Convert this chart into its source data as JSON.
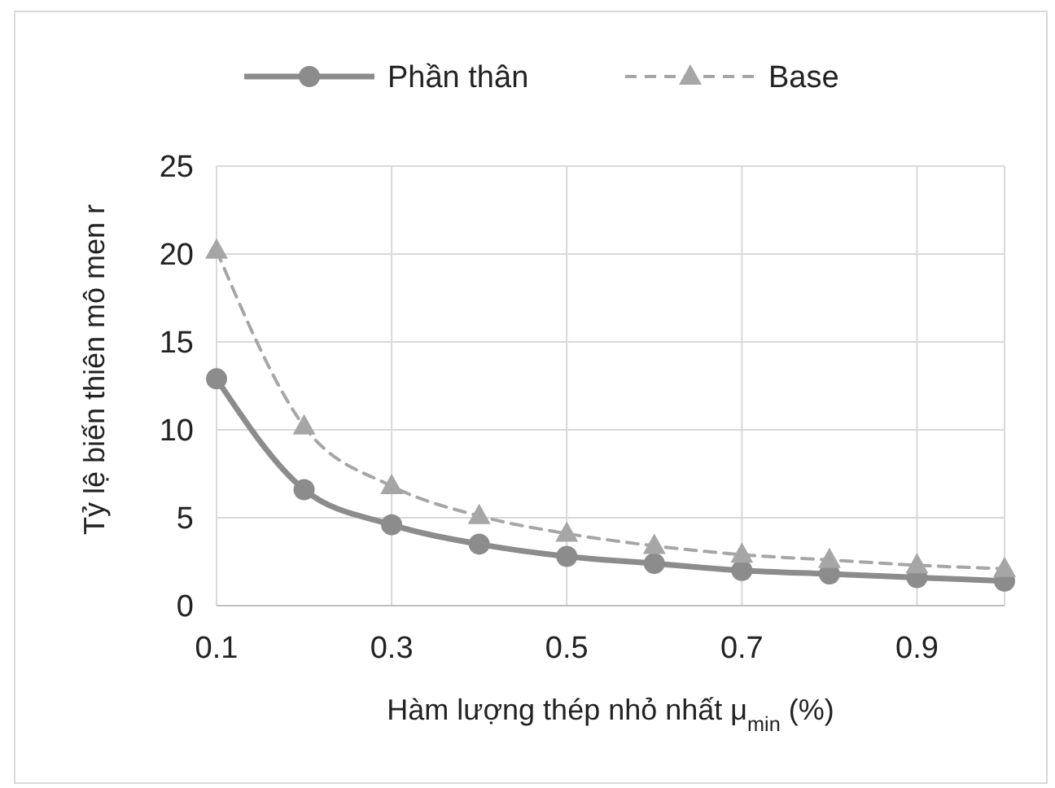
{
  "chart_data": {
    "type": "line",
    "xlabel": "Hàm lượng thép nhỏ nhất μ$_{min}$ (%)",
    "ylabel": "Tỷ lệ biến thiên mô men r",
    "x": [
      0.1,
      0.2,
      0.3,
      0.4,
      0.5,
      0.6,
      0.7,
      0.8,
      0.9,
      1.0
    ],
    "series": [
      {
        "name": "Phần thân",
        "color": "#8c8c8c",
        "marker": "circle",
        "line_style": "solid",
        "values": [
          12.9,
          6.6,
          4.6,
          3.5,
          2.8,
          2.4,
          2.0,
          1.8,
          1.6,
          1.4
        ]
      },
      {
        "name": "Base",
        "color": "#a6a6a6",
        "marker": "triangle",
        "line_style": "dashed",
        "values": [
          20.2,
          10.2,
          6.8,
          5.1,
          4.1,
          3.4,
          2.9,
          2.6,
          2.3,
          2.1
        ]
      }
    ],
    "xlim": [
      0.1,
      1.0
    ],
    "xticks": [
      0.1,
      0.3,
      0.5,
      0.7,
      0.9
    ],
    "ylim": [
      0,
      25
    ],
    "yticks": [
      0,
      5,
      10,
      15,
      20,
      25
    ],
    "grid": true,
    "legend": "top"
  }
}
